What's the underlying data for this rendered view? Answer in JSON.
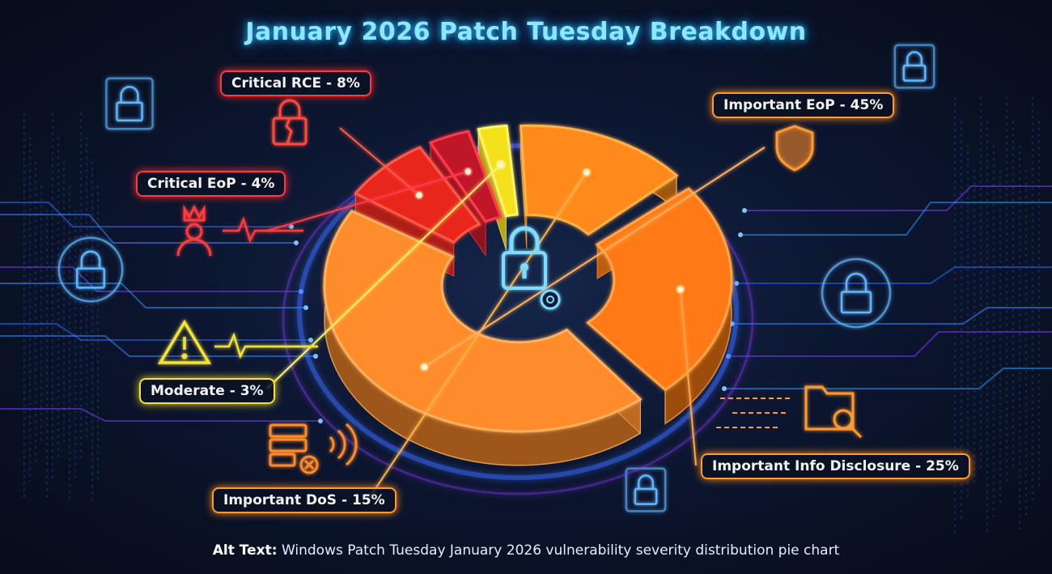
{
  "title": "January 2026 Patch Tuesday Breakdown",
  "alt_text": {
    "prefix": "Alt Text:",
    "body": "Windows Patch Tuesday January 2026 vulnerability severity distribution pie chart"
  },
  "labels": {
    "critical_rce": "Critical RCE - 8%",
    "critical_eop": "Critical EoP - 4%",
    "moderate": "Moderate - 3%",
    "important_dos": "Important DoS - 15%",
    "important_info": "Important Info Disclosure - 25%",
    "important_eop": "Important EoP - 45%"
  },
  "chart_data": {
    "type": "pie",
    "style": "3D donut",
    "title": "January 2026 Patch Tuesday Breakdown",
    "categories": [
      "Critical RCE",
      "Critical EoP",
      "Moderate",
      "Important DoS",
      "Important Info Disclosure",
      "Important EoP"
    ],
    "values": [
      8,
      4,
      3,
      15,
      25,
      45
    ],
    "unit": "%",
    "colors": [
      "#e8261f",
      "#c0182b",
      "#f5e01c",
      "#ff8a1a",
      "#ff7a12",
      "#ff8c2a"
    ]
  },
  "icons": {
    "critical_rce": "broken-lock-icon",
    "critical_eop": "crowned-user-icon",
    "moderate": "warning-triangle-icon",
    "important_dos": "server-error-icon",
    "important_info": "folder-search-icon",
    "important_eop": "shield-icon",
    "center": "lock-gear-icon"
  }
}
